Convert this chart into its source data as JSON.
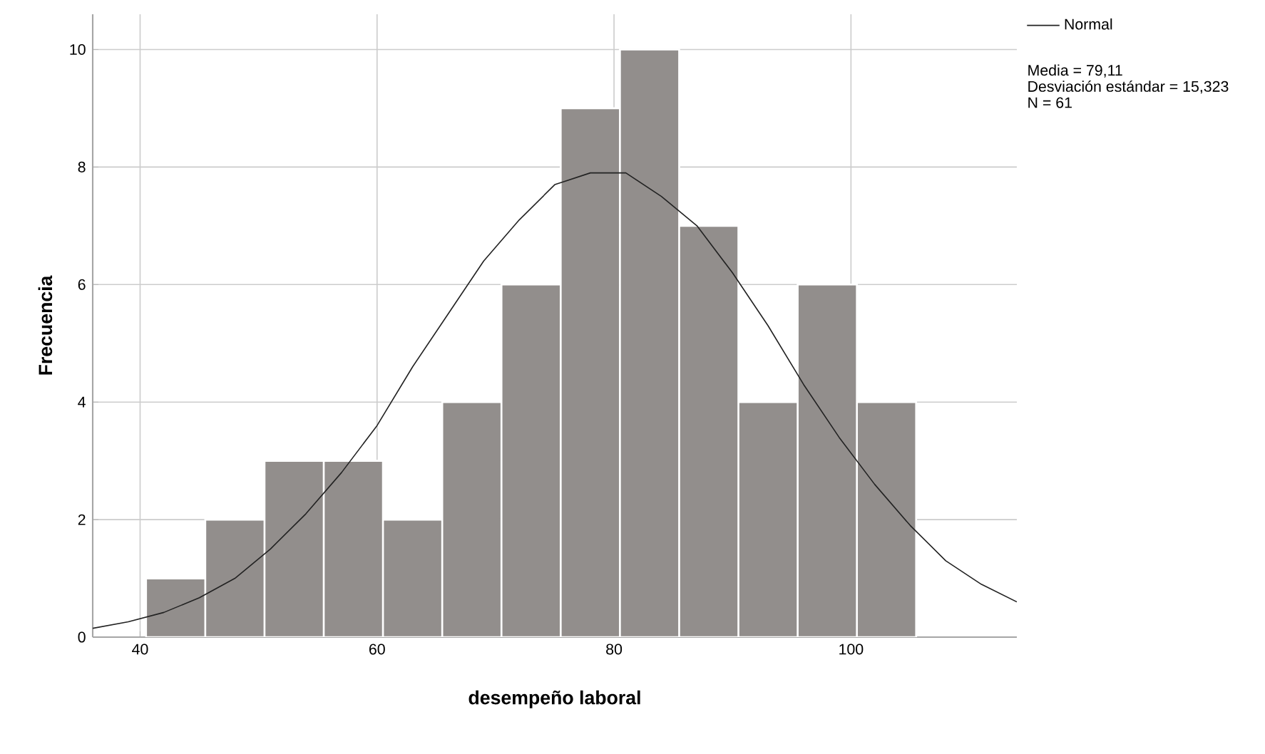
{
  "chart_data": {
    "type": "histogram",
    "xlabel": "desempeño laboral",
    "ylabel": "Frecuencia",
    "bins": [
      40.5,
      45.5,
      50.5,
      55.5,
      60.5,
      65.5,
      70.5,
      75.5,
      80.5,
      85.5,
      90.5,
      95.5,
      100.5,
      105.5
    ],
    "values": [
      1,
      2,
      3,
      3,
      2,
      4,
      6,
      9,
      10,
      7,
      4,
      6,
      4
    ],
    "color": "#928e8c",
    "series": [
      {
        "type": "line",
        "name": "Normal",
        "color": "#222222",
        "x": [
          36,
          39,
          42,
          45,
          48,
          51,
          54,
          57,
          60,
          63,
          66,
          69,
          72,
          75,
          78,
          79.1,
          81,
          84,
          87,
          90,
          93,
          96,
          99,
          102,
          105,
          108,
          111,
          114
        ],
        "values": [
          0.15,
          0.26,
          0.42,
          0.67,
          1.0,
          1.5,
          2.1,
          2.8,
          3.6,
          4.6,
          5.5,
          6.4,
          7.1,
          7.7,
          7.9,
          7.9,
          7.9,
          7.5,
          7.0,
          6.2,
          5.3,
          4.3,
          3.4,
          2.6,
          1.9,
          1.3,
          0.9,
          0.6
        ]
      }
    ],
    "annotations": [
      "Media = 79,11",
      "Desviación estándar = 15,323",
      "N = 61"
    ],
    "xlim": [
      36,
      114
    ],
    "ylim": [
      0,
      10.6
    ],
    "xticks": [
      40,
      60,
      80,
      100
    ],
    "yticks": [
      0,
      2,
      4,
      6,
      8,
      10
    ],
    "grid": true,
    "legend": "top right"
  }
}
